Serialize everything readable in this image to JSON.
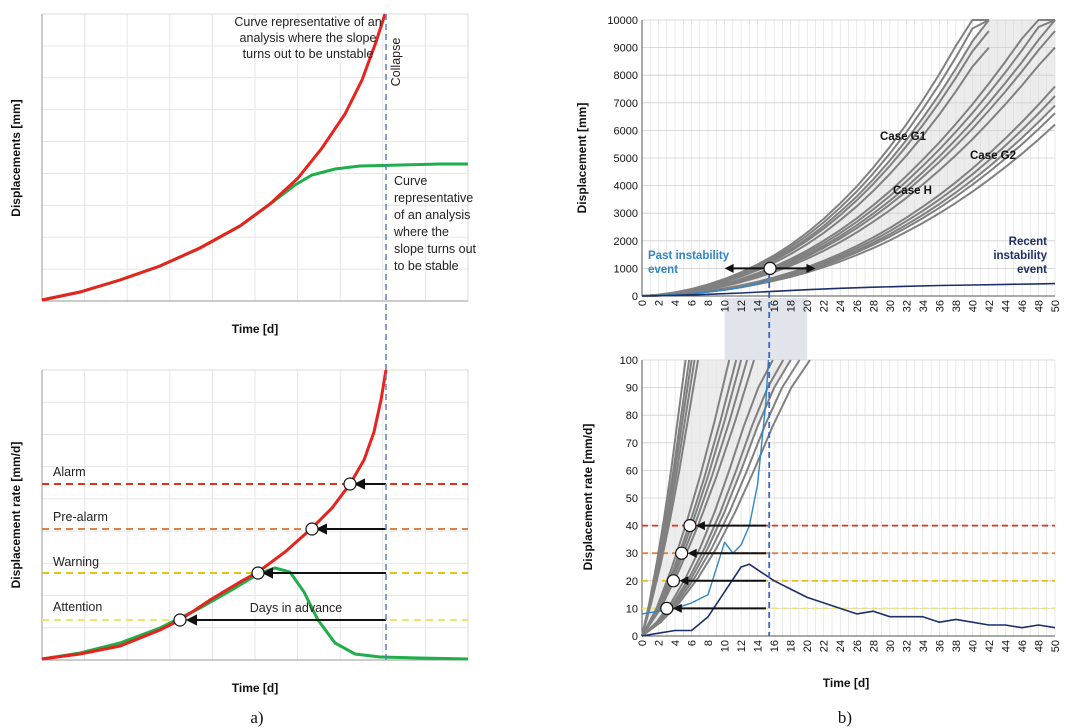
{
  "panel_labels": {
    "a": "a)",
    "b": "b)"
  },
  "colors": {
    "red": "#e8221c",
    "green": "#1fae4b",
    "alarm": "#e0301e",
    "prealarm": "#d9824a",
    "warning": "#e3c11f",
    "attention": "#ece57a",
    "collapse": "#5d7fc8",
    "case_gray": "#808080",
    "light_blue": "#2f86c9",
    "dark_blue": "#1c2f6b"
  },
  "panel_a": {
    "top": {
      "ylabel": "Displacements [mm]",
      "xlabel": "Time [d]",
      "collapse_label": "Collapse",
      "unstable_label": [
        "Curve representative of an",
        "analysis where the slope",
        "turns out to be unstable"
      ],
      "stable_label": [
        "Curve",
        "representative",
        "of an analysis",
        "where the",
        "slope turns out",
        "to be stable"
      ]
    },
    "bottom": {
      "ylabel": "Displacement rate [mm/d]",
      "xlabel": "Time [d]",
      "thresholds": [
        "Alarm",
        "Pre-alarm",
        "Warning",
        "Attention"
      ],
      "days_in_advance": "Days in advance"
    }
  },
  "chart_data": [
    {
      "type": "line",
      "title": "",
      "xlabel": "",
      "ylabel": "Displacement [mm]",
      "xlim": [
        0,
        50
      ],
      "ylim": [
        0,
        10000
      ],
      "xticks": [
        0,
        2,
        4,
        6,
        8,
        10,
        12,
        14,
        16,
        18,
        20,
        22,
        24,
        26,
        28,
        30,
        32,
        34,
        36,
        38,
        40,
        42,
        44,
        46,
        48,
        50
      ],
      "yticks": [
        0,
        1000,
        2000,
        3000,
        4000,
        5000,
        6000,
        7000,
        8000,
        9000,
        10000
      ],
      "annotations": [
        "Case G1",
        "Case H",
        "Case G2",
        "Past instability event",
        "Recent instability event"
      ],
      "series": [
        {
          "name": "Case G1",
          "x": [
            0,
            2,
            4,
            6,
            8,
            10,
            12,
            14,
            16,
            18,
            20,
            22,
            24,
            26,
            28,
            30,
            32,
            34,
            36,
            38,
            40,
            42,
            44,
            46,
            48,
            50
          ],
          "y": [
            0,
            40,
            120,
            230,
            380,
            560,
            780,
            1040,
            1340,
            1690,
            2090,
            2540,
            3050,
            3610,
            4230,
            4910,
            5650,
            6450,
            7310,
            8240,
            9230,
            10000,
            null,
            null,
            null,
            null
          ]
        },
        {
          "name": "Case H",
          "x": [
            0,
            2,
            4,
            6,
            8,
            10,
            12,
            14,
            16,
            18,
            20,
            22,
            24,
            26,
            28,
            30,
            32,
            34,
            36,
            38,
            40,
            42,
            44,
            46,
            48,
            50
          ],
          "y": [
            0,
            25,
            80,
            160,
            270,
            400,
            560,
            750,
            970,
            1220,
            1500,
            1820,
            2170,
            2560,
            2990,
            3450,
            3950,
            4490,
            5060,
            5670,
            6310,
            7000,
            7720,
            8480,
            9280,
            10000
          ]
        },
        {
          "name": "Case G2",
          "x": [
            0,
            2,
            4,
            6,
            8,
            10,
            12,
            14,
            16,
            18,
            20,
            22,
            24,
            26,
            28,
            30,
            32,
            34,
            36,
            38,
            40,
            42,
            44,
            46,
            48,
            50
          ],
          "y": [
            0,
            15,
            50,
            100,
            170,
            250,
            350,
            470,
            610,
            770,
            950,
            1160,
            1390,
            1650,
            1930,
            2240,
            2580,
            2940,
            3330,
            3750,
            4200,
            4680,
            5190,
            5730,
            6300,
            6900
          ]
        },
        {
          "name": "Past instability event",
          "x": [
            0,
            2,
            4,
            6,
            8,
            10,
            12,
            14,
            15,
            15.5
          ],
          "y": [
            0,
            20,
            50,
            90,
            140,
            210,
            310,
            440,
            560,
            700
          ]
        },
        {
          "name": "Recent instability event",
          "x": [
            0,
            4,
            8,
            12,
            16,
            20,
            24,
            28,
            32,
            36,
            40,
            44,
            48,
            50
          ],
          "y": [
            0,
            20,
            60,
            110,
            170,
            230,
            280,
            320,
            350,
            380,
            400,
            420,
            440,
            450
          ]
        }
      ]
    },
    {
      "type": "line",
      "title": "",
      "xlabel": "Time [d]",
      "ylabel": "Displacement rate [mm/d]",
      "xlim": [
        0,
        50
      ],
      "ylim": [
        0,
        100
      ],
      "xticks": [
        0,
        2,
        4,
        6,
        8,
        10,
        12,
        14,
        16,
        18,
        20,
        22,
        24,
        26,
        28,
        30,
        32,
        34,
        36,
        38,
        40,
        42,
        44,
        46,
        48,
        50
      ],
      "yticks": [
        0,
        10,
        20,
        30,
        40,
        50,
        60,
        70,
        80,
        90,
        100
      ],
      "thresholds": [
        40,
        30,
        20,
        10
      ],
      "series": [
        {
          "name": "Case G1",
          "x": [
            0,
            1,
            2,
            3,
            4,
            5,
            6
          ],
          "y": [
            0,
            12,
            26,
            42,
            60,
            80,
            100
          ]
        },
        {
          "name": "Case H",
          "x": [
            0,
            2,
            4,
            6,
            8,
            10,
            12
          ],
          "y": [
            0,
            10,
            24,
            40,
            58,
            78,
            100
          ]
        },
        {
          "name": "Case G2",
          "x": [
            0,
            2,
            4,
            6,
            8,
            10,
            12,
            14,
            16,
            18
          ],
          "y": [
            0,
            5,
            12,
            21,
            32,
            45,
            60,
            76,
            90,
            100
          ]
        },
        {
          "name": "Past instability event",
          "x": [
            0,
            2,
            4,
            6,
            8,
            10,
            11,
            12,
            13,
            14,
            15,
            15.3
          ],
          "y": [
            8,
            9,
            10,
            12,
            15,
            34,
            30,
            33,
            40,
            55,
            85,
            100
          ]
        },
        {
          "name": "Recent instability event",
          "x": [
            0,
            2,
            4,
            6,
            8,
            10,
            12,
            13,
            14,
            16,
            18,
            20,
            22,
            24,
            26,
            28,
            30,
            32,
            34,
            36,
            38,
            40,
            42,
            44,
            46,
            48,
            50
          ],
          "y": [
            0,
            1,
            2,
            2,
            7,
            16,
            25,
            26,
            24,
            20,
            17,
            14,
            12,
            10,
            8,
            9,
            7,
            7,
            7,
            5,
            6,
            5,
            4,
            4,
            3,
            4,
            3
          ]
        }
      ]
    }
  ]
}
